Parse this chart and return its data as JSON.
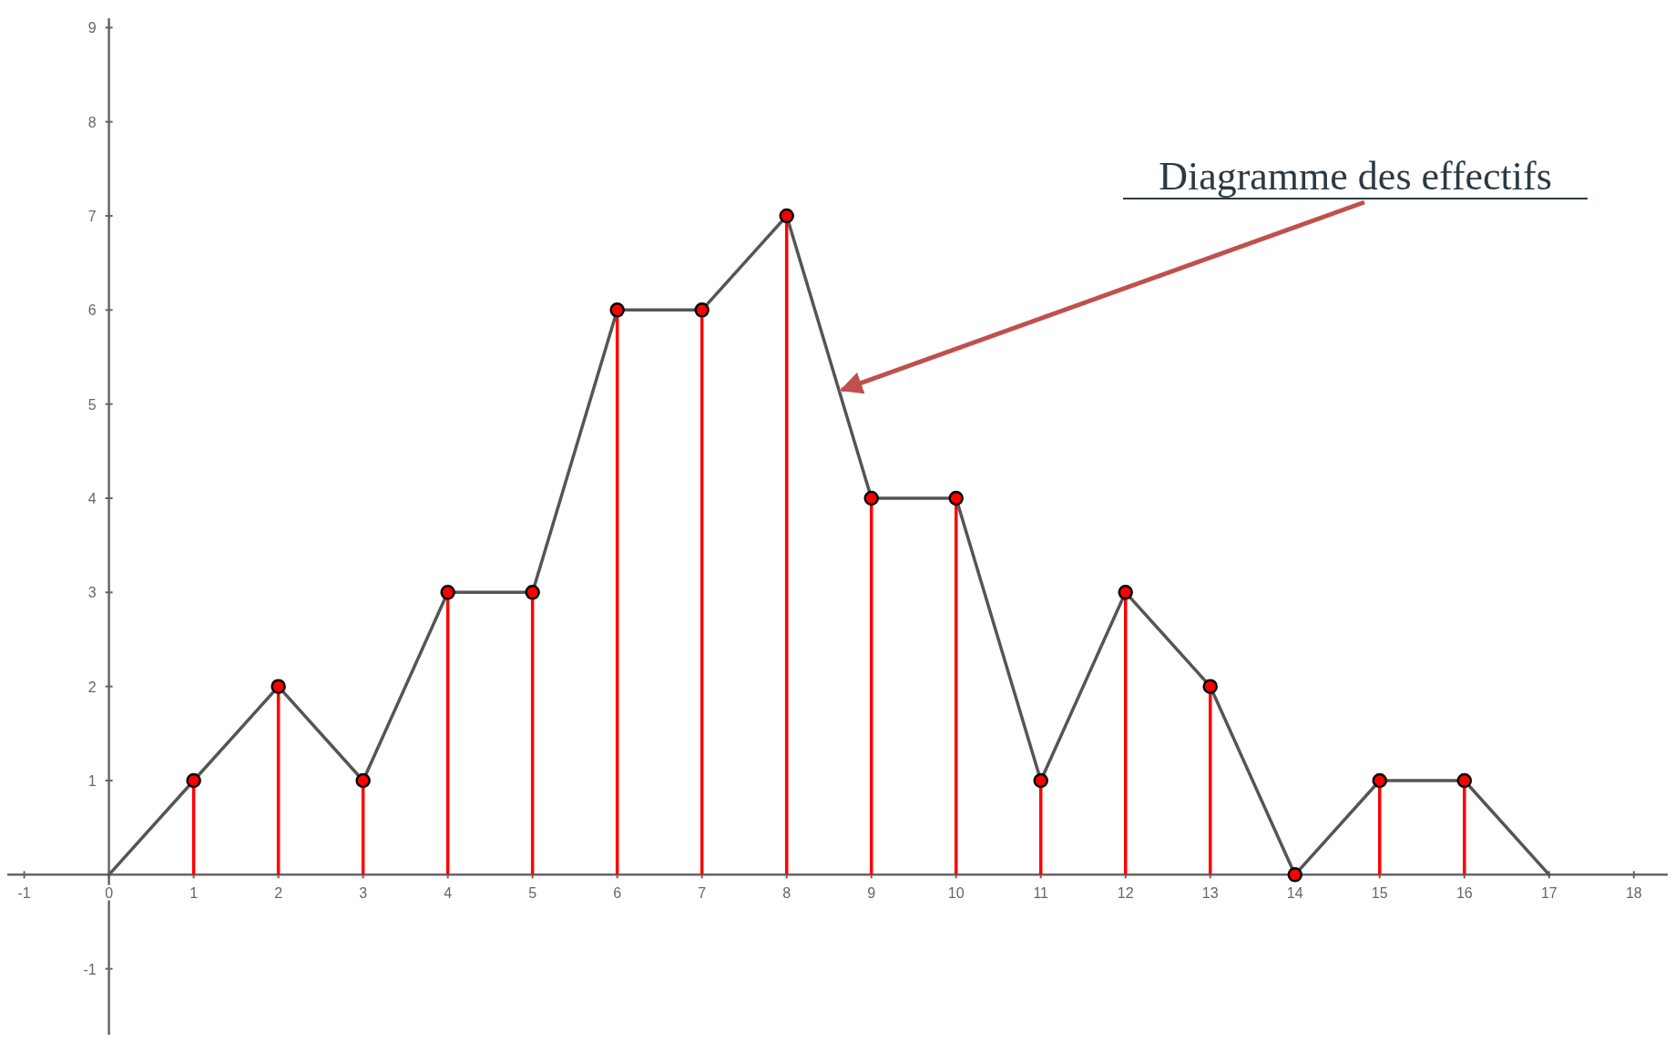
{
  "chart_data": {
    "type": "lollipop",
    "xlim": [
      -1.2,
      18.4
    ],
    "ylim": [
      -1.7,
      9.1
    ],
    "xticks": [
      -1,
      0,
      1,
      2,
      3,
      4,
      5,
      6,
      7,
      8,
      9,
      10,
      11,
      12,
      13,
      14,
      15,
      16,
      17,
      18
    ],
    "yticks": [
      -1,
      1,
      2,
      3,
      4,
      5,
      6,
      7,
      8,
      9
    ],
    "grid": false,
    "series": [
      {
        "color": "#ff0000",
        "marker": "circle",
        "x": [
          1,
          2,
          3,
          4,
          5,
          6,
          7,
          8,
          9,
          10,
          11,
          12,
          13,
          14,
          15,
          16
        ],
        "values": [
          1,
          2,
          1,
          3,
          3,
          6,
          6,
          7,
          4,
          4,
          1,
          3,
          2,
          0,
          1,
          1
        ]
      },
      {
        "type": "line",
        "color": "#555555",
        "marker": "none",
        "line_style": "solid",
        "x": [
          0,
          1,
          2,
          3,
          4,
          5,
          6,
          7,
          8,
          9,
          10,
          11,
          12,
          13,
          14,
          15,
          16,
          17
        ],
        "values": [
          0,
          1,
          2,
          1,
          3,
          3,
          6,
          6,
          7,
          4,
          4,
          1,
          3,
          2,
          0,
          1,
          1,
          0
        ]
      }
    ],
    "annotations": [
      {
        "text": "Diagramme des effectifs",
        "x": 8.65,
        "y": 5.15
      }
    ]
  }
}
